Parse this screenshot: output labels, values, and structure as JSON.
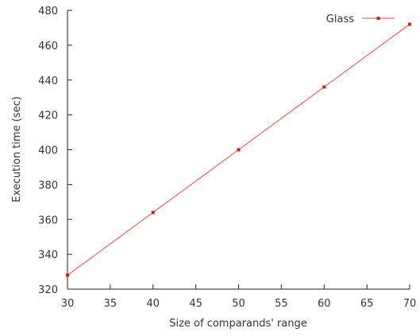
{
  "chart_data": {
    "type": "line",
    "title": "",
    "xlabel": "Size of comparands' range",
    "ylabel": "Execution time (sec)",
    "xlim": [
      30,
      70
    ],
    "ylim": [
      320,
      480
    ],
    "x_ticks": [
      30,
      35,
      40,
      45,
      50,
      55,
      60,
      65,
      70
    ],
    "y_ticks": [
      320,
      340,
      360,
      380,
      400,
      420,
      440,
      460,
      480
    ],
    "grid": false,
    "legend_position": "top-right",
    "series": [
      {
        "name": "Glass",
        "color": "#e8473c",
        "marker_color": "#d0201a",
        "marker": "square",
        "x": [
          30,
          40,
          50,
          60,
          70
        ],
        "y": [
          328,
          364,
          400,
          436,
          472
        ]
      }
    ]
  }
}
